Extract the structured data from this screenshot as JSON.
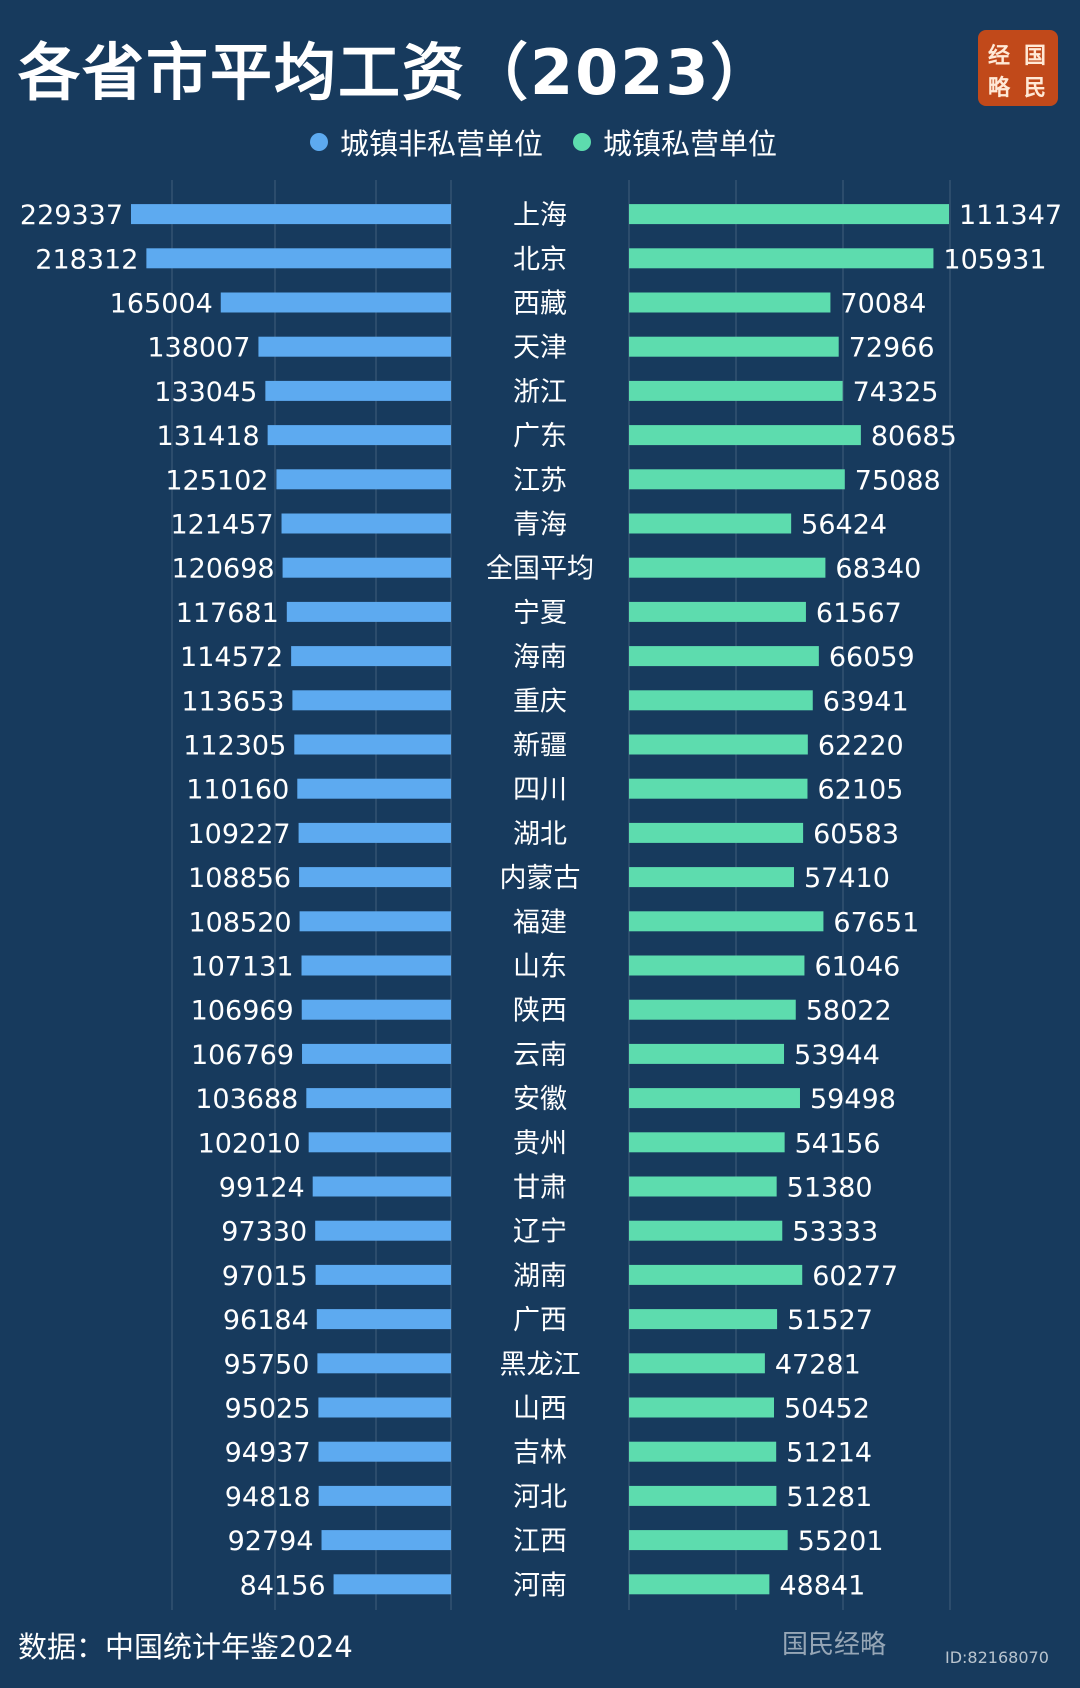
{
  "title": "各省市平均工资（2023）",
  "logo": {
    "chars": [
      "经",
      "国",
      "略",
      "民"
    ]
  },
  "source": "数据：中国统计年鉴2024",
  "watermark": "国民经略",
  "watermark_id": "ID:82168070",
  "colors": {
    "background": "#173a5d",
    "series_a": "#5daaf0",
    "series_b": "#5ddcae"
  },
  "chart_data": {
    "type": "bar",
    "orientation": "horizontal-butterfly",
    "legend_position": "top",
    "categories": [
      "上海",
      "北京",
      "西藏",
      "天津",
      "浙江",
      "广东",
      "江苏",
      "青海",
      "全国平均",
      "宁夏",
      "海南",
      "重庆",
      "新疆",
      "四川",
      "湖北",
      "内蒙古",
      "福建",
      "山东",
      "陕西",
      "云南",
      "安徽",
      "贵州",
      "甘肃",
      "辽宁",
      "湖南",
      "广西",
      "黑龙江",
      "山西",
      "吉林",
      "河北",
      "江西",
      "河南"
    ],
    "series": [
      {
        "name": "城镇非私营单位",
        "color": "#5daaf0",
        "values": [
          229337,
          218312,
          165004,
          138007,
          133045,
          131418,
          125102,
          121457,
          120698,
          117681,
          114572,
          113653,
          112305,
          110160,
          109227,
          108856,
          108520,
          107131,
          106969,
          106769,
          103688,
          102010,
          99124,
          97330,
          97015,
          96184,
          95750,
          95025,
          94937,
          94818,
          92794,
          84156
        ]
      },
      {
        "name": "城镇私营单位",
        "color": "#5ddcae",
        "values": [
          111347,
          105931,
          70084,
          72966,
          74325,
          80685,
          75088,
          56424,
          68340,
          61567,
          66059,
          63941,
          62220,
          62105,
          60583,
          57410,
          67651,
          61046,
          58022,
          53944,
          59498,
          54156,
          51380,
          53333,
          60277,
          51527,
          47281,
          50452,
          51214,
          51281,
          55201,
          48841
        ]
      }
    ]
  }
}
